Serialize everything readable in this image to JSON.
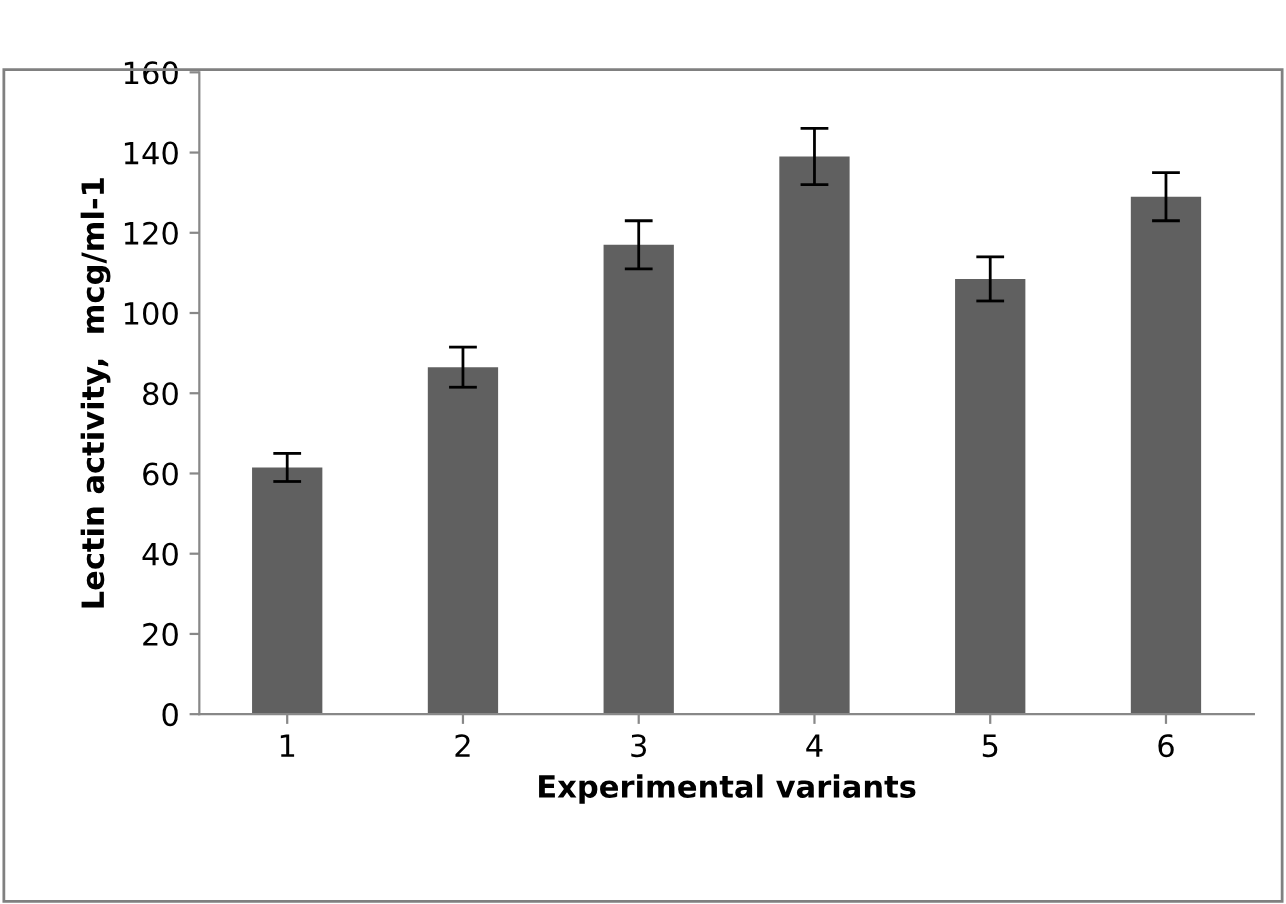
{
  "chart_data": {
    "type": "bar",
    "xlabel": "Experimental variants",
    "ylabel": "Lectin activity,  mcg/ml-1",
    "categories": [
      "1",
      "2",
      "3",
      "4",
      "5",
      "6"
    ],
    "values": [
      61.5,
      86.5,
      117,
      139,
      108.5,
      129
    ],
    "errors": [
      3.5,
      5,
      6,
      7,
      5.5,
      6
    ],
    "color": "#606060",
    "ylim": [
      0,
      160
    ],
    "yticks": [
      0,
      20,
      40,
      60,
      80,
      100,
      120,
      140,
      160
    ],
    "grid": false,
    "legend": false
  }
}
